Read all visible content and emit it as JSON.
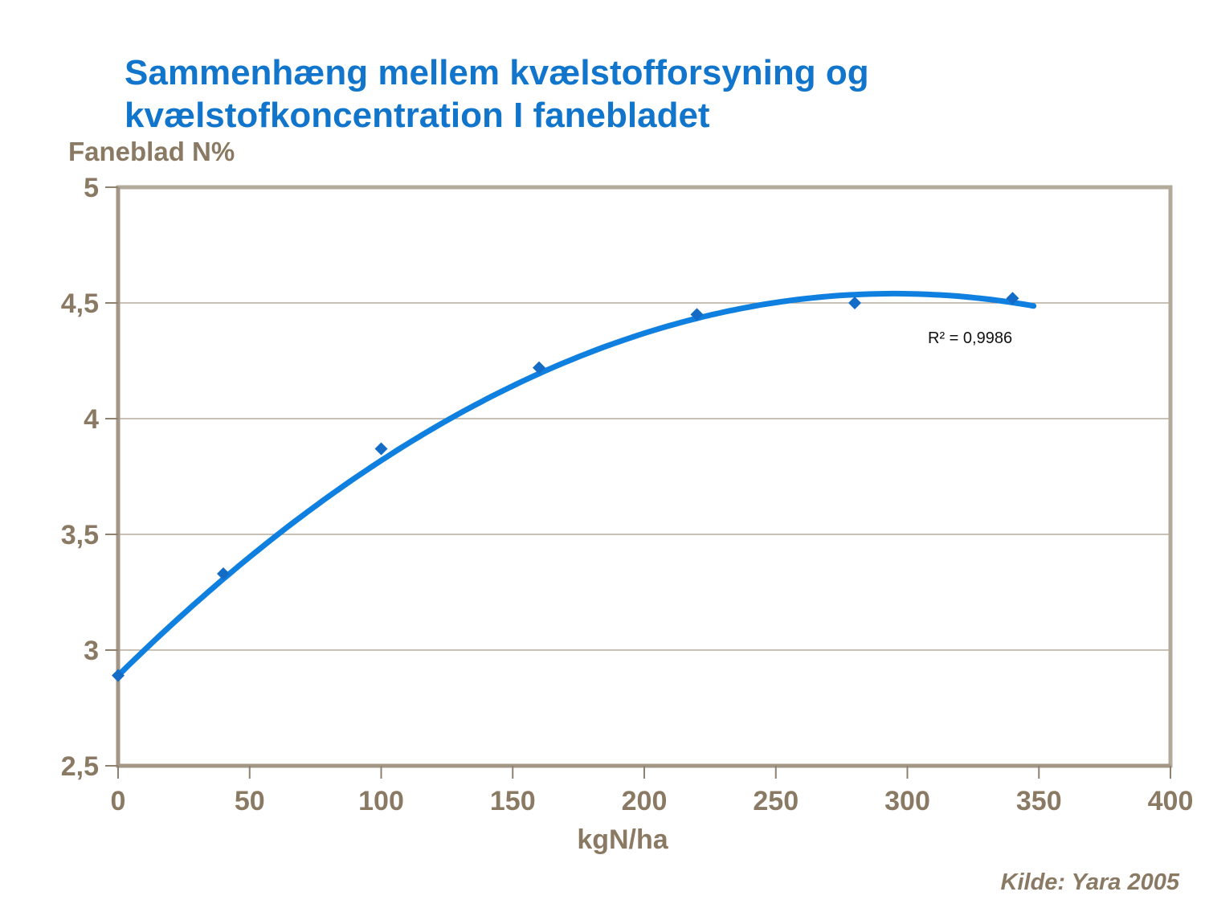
{
  "slide": {
    "title_line1": "Sammenhæng mellem kvælstofforsyning og",
    "title_line2": "kvælstofkoncentration I fanebladet",
    "source": "Kilde: Yara 2005"
  },
  "colors": {
    "title_blue": "#1175CB",
    "axis_text_brown": "#8A7A64",
    "frame_outer": "#B4AA9C",
    "frame_axis": "#A39684",
    "gridline": "#A89A86",
    "tick": "#8F8170",
    "trend_line_blue": "#0F80DF",
    "marker_blue": "#156CC6",
    "annotation_black": "#111111",
    "background": "#FFFFFF"
  },
  "chart_data": {
    "type": "scatter",
    "title": "",
    "xlabel": "kgN/ha",
    "ylabel": "Faneblad N%",
    "xlim": [
      0,
      400
    ],
    "ylim": [
      2.5,
      5
    ],
    "grid": "horizontal",
    "legend_position": "none",
    "series": [
      {
        "name": "Faneblad N%",
        "marker": "diamond",
        "x": [
          0,
          40,
          100,
          160,
          220,
          280,
          340
        ],
        "y": [
          2.89,
          3.33,
          3.87,
          4.22,
          4.45,
          4.5,
          4.52
        ]
      }
    ],
    "trendline": {
      "kind": "polynomial",
      "order": 2,
      "a": 2.89,
      "b": 0.011187,
      "c": -1.896e-05,
      "x_start": 0,
      "x_end": 348,
      "r2_label": "R² = 0,9986"
    },
    "xticks": [
      0,
      50,
      100,
      150,
      200,
      250,
      300,
      350,
      400
    ],
    "xtick_labels": [
      "0",
      "50",
      "100",
      "150",
      "200",
      "250",
      "300",
      "350",
      "400"
    ],
    "yticks": [
      2.5,
      3,
      3.5,
      4,
      4.5,
      5
    ],
    "ytick_labels": [
      "2,5",
      "3",
      "3,5",
      "4",
      "4,5",
      "5"
    ]
  }
}
